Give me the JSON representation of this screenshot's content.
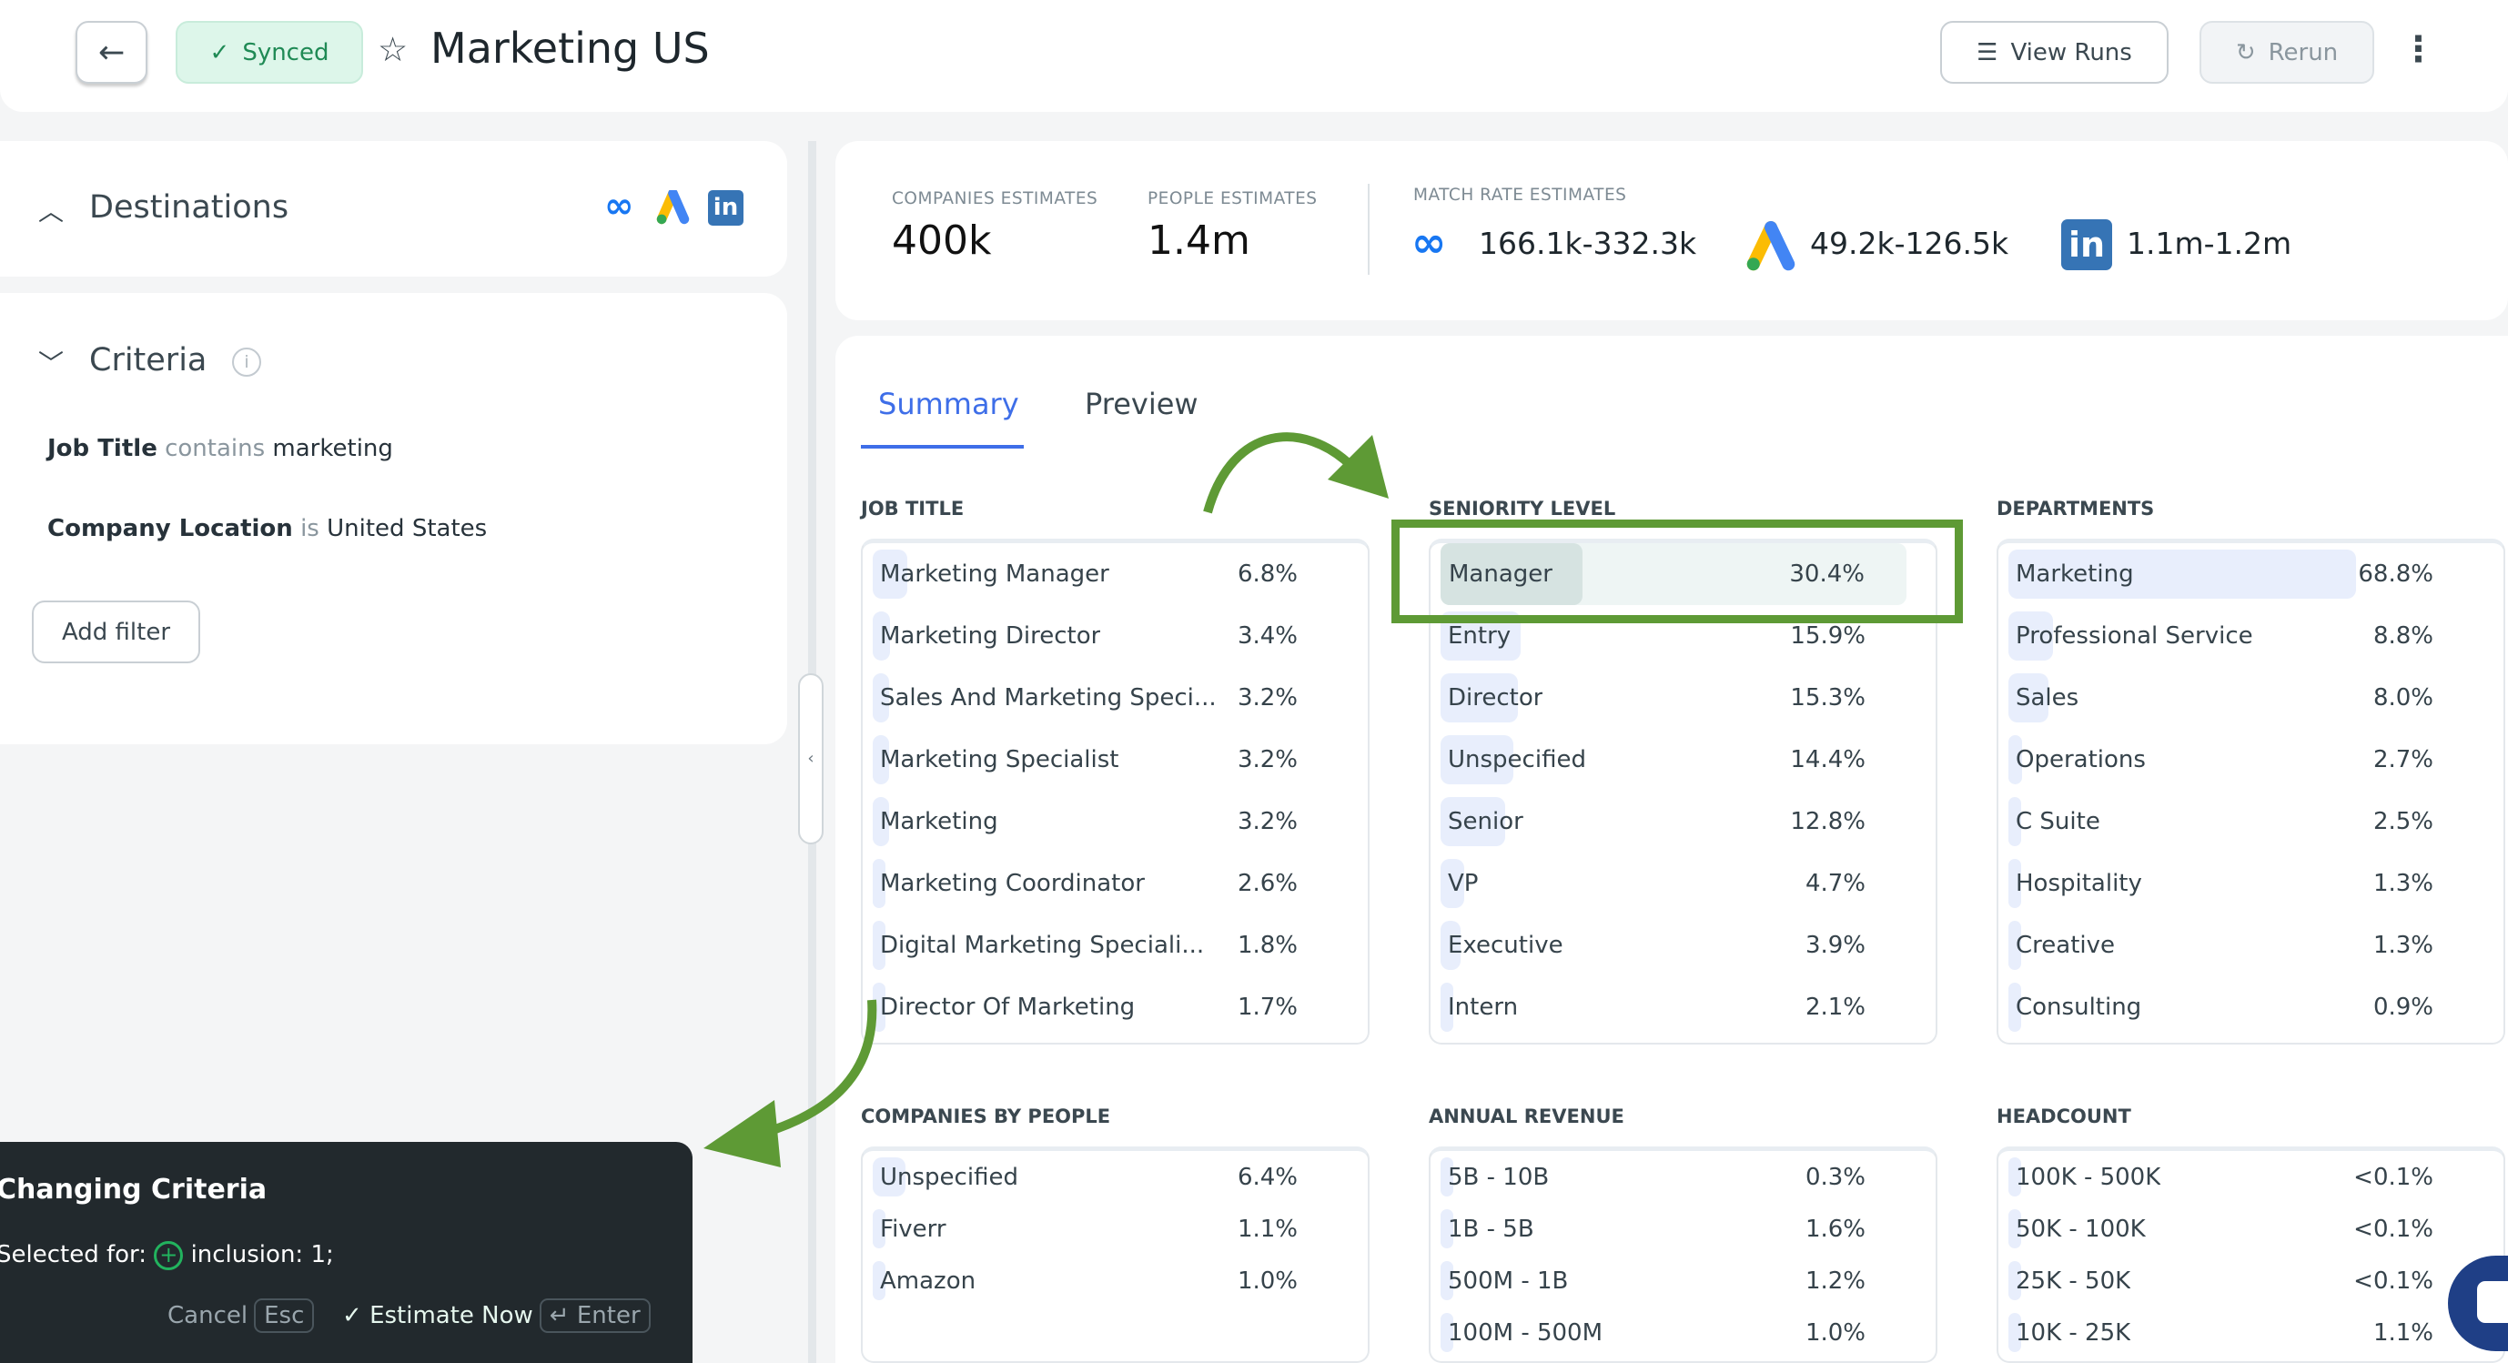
{
  "header": {
    "title": "Marketing US",
    "status": "Synced",
    "view_runs": "View Runs",
    "rerun": "Rerun"
  },
  "destinations": {
    "title": "Destinations"
  },
  "criteria": {
    "title": "Criteria",
    "filters": [
      {
        "field": "Job Title",
        "op": "contains",
        "value": "marketing"
      },
      {
        "field": "Company Location",
        "op": "is",
        "value": "United States"
      }
    ],
    "add_filter": "Add filter"
  },
  "estimates": {
    "companies_label": "COMPANIES ESTIMATES",
    "companies": "400k",
    "people_label": "PEOPLE ESTIMATES",
    "people": "1.4m",
    "match_label": "MATCH RATE ESTIMATES",
    "meta": "166.1k-332.3k",
    "google": "49.2k-126.5k",
    "linkedin": "1.1m-1.2m"
  },
  "tabs": [
    {
      "label": "Summary",
      "active": true
    },
    {
      "label": "Preview",
      "active": false
    }
  ],
  "sections": [
    {
      "title": "JOB TITLE",
      "rows": [
        [
          "Marketing Manager",
          "6.8%",
          6.8
        ],
        [
          "Marketing Director",
          "3.4%",
          3.4
        ],
        [
          "Sales And Marketing Speci...",
          "3.2%",
          3.2
        ],
        [
          "Marketing Specialist",
          "3.2%",
          3.2
        ],
        [
          "Marketing",
          "3.2%",
          3.2
        ],
        [
          "Marketing Coordinator",
          "2.6%",
          2.6
        ],
        [
          "Digital Marketing Speciali...",
          "1.8%",
          1.8
        ],
        [
          "Director Of Marketing",
          "1.7%",
          1.7
        ]
      ]
    },
    {
      "title": "SENIORITY LEVEL",
      "selected": 0,
      "rows": [
        [
          "Manager",
          "30.4%",
          30.4
        ],
        [
          "Entry",
          "15.9%",
          15.9
        ],
        [
          "Director",
          "15.3%",
          15.3
        ],
        [
          "Unspecified",
          "14.4%",
          14.4
        ],
        [
          "Senior",
          "12.8%",
          12.8
        ],
        [
          "VP",
          "4.7%",
          4.7
        ],
        [
          "Executive",
          "3.9%",
          3.9
        ],
        [
          "Intern",
          "2.1%",
          2.1
        ]
      ]
    },
    {
      "title": "DEPARTMENTS",
      "rows": [
        [
          "Marketing",
          "68.8%",
          68.8
        ],
        [
          "Professional Service",
          "8.8%",
          8.8
        ],
        [
          "Sales",
          "8.0%",
          8.0
        ],
        [
          "Operations",
          "2.7%",
          2.7
        ],
        [
          "C Suite",
          "2.5%",
          2.5
        ],
        [
          "Hospitality",
          "1.3%",
          1.3
        ],
        [
          "Creative",
          "1.3%",
          1.3
        ],
        [
          "Consulting",
          "0.9%",
          0.9
        ]
      ]
    },
    {
      "title": "COMPANIES BY PEOPLE",
      "rows": [
        [
          "Unspecified",
          "6.4%",
          6.4
        ],
        [
          "Fiverr",
          "1.1%",
          1.1
        ],
        [
          "Amazon",
          "1.0%",
          1.0
        ]
      ]
    },
    {
      "title": "ANNUAL REVENUE",
      "rows": [
        [
          "5B - 10B",
          "0.3%",
          0.3
        ],
        [
          "1B - 5B",
          "1.6%",
          1.6
        ],
        [
          "500M - 1B",
          "1.2%",
          1.2
        ],
        [
          "100M - 500M",
          "1.0%",
          1.0
        ]
      ]
    },
    {
      "title": "HEADCOUNT",
      "rows": [
        [
          "100K - 500K",
          "<0.1%",
          0.1
        ],
        [
          "50K - 100K",
          "<0.1%",
          0.1
        ],
        [
          "25K - 50K",
          "<0.1%",
          0.1
        ],
        [
          "10K - 25K",
          "1.1%",
          1.1
        ]
      ]
    }
  ],
  "toast": {
    "title": "Changing Criteria",
    "selected_label": "Selected for:",
    "selected_value": "inclusion: 1;",
    "cancel": "Cancel",
    "cancel_key": "Esc",
    "estimate": "Estimate Now",
    "estimate_key": "Enter"
  },
  "colors": {
    "annotation": "#5e9a35",
    "synced_bg": "#ddf6ea",
    "synced_text": "#1f8a55",
    "accent": "#3e6ee8"
  }
}
